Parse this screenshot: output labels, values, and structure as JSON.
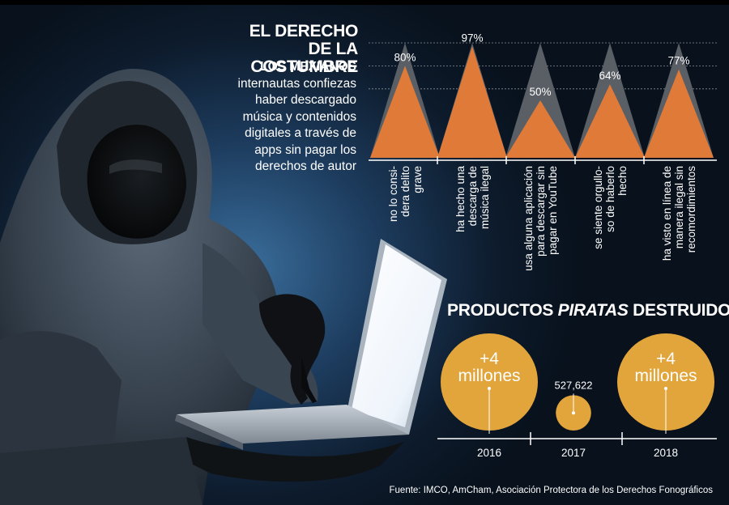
{
  "headline": "EL DERECHO DE LA COSTUMBRE",
  "intro_lead": "LOS MEXIANOS",
  "intro_body": " internautas confiezas haber descargado música y contenidos digitales a través de apps sin pagar los derechos de autor",
  "section2_prefix": "PRODUCTOS ",
  "section2_emph": "PIRATAS",
  "section2_suffix": " DESTRUIDOS",
  "source": "Fuente: IMCO, AmCham, Asociación Protectora de los Derechos Fonográficos",
  "colors": {
    "accent": "#e07a38",
    "ghost": "#5a5f66",
    "bubble": "#e1a53c"
  },
  "chart_data": [
    {
      "type": "area",
      "title": "EL DERECHO DE LA COSTUMBRE",
      "ylim": [
        0,
        100
      ],
      "grid": true,
      "categories": [
        [
          "no lo consi-",
          "dera delito",
          "grave"
        ],
        [
          "ha hecho una",
          "descarga de",
          "música ilegal"
        ],
        [
          "usa alguna aplicación",
          "para descargar sin",
          "pagar en YouTube"
        ],
        [
          "se siente orgullo-",
          "so de haberlo",
          "hecho"
        ],
        [
          "ha visto en línea de",
          "manera ilegal sin",
          "recomordimientos"
        ]
      ],
      "values": [
        80,
        97,
        50,
        64,
        77
      ],
      "labels": [
        "80%",
        "97%",
        "50%",
        "64%",
        "77%"
      ]
    },
    {
      "type": "scatter",
      "title": "PRODUCTOS PIRATAS DESTRUIDOS",
      "categories": [
        "2016",
        "2017",
        "2018"
      ],
      "values": [
        4000000,
        527622,
        4000000
      ],
      "labels": [
        [
          "+4",
          "millones"
        ],
        [
          "527,622"
        ],
        [
          "+4",
          "millones"
        ]
      ]
    }
  ]
}
